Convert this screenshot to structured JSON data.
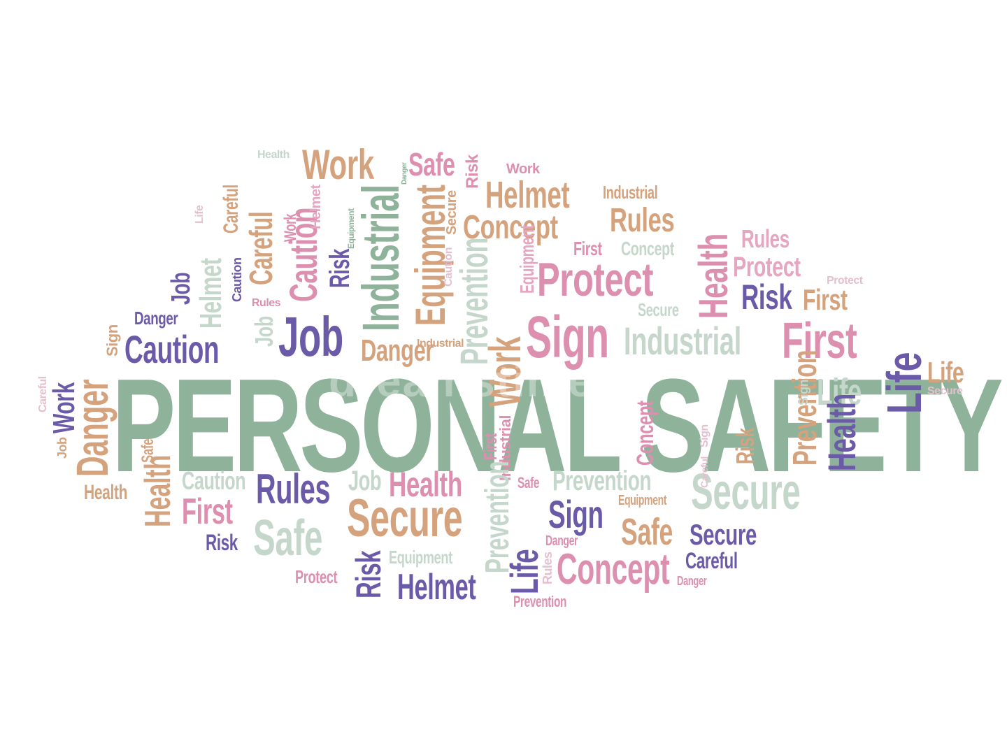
{
  "colors": {
    "green": "#8fb29b",
    "purple": "#6a5aa8",
    "tan": "#d4a27c",
    "pink": "#dd8fb0",
    "light": "#c5d7cb",
    "faint": "#e4c0cf"
  },
  "cloud": {
    "title": "PERSONAL SAFETY",
    "words": [
      "Health",
      "Work",
      "Safe",
      "Risk",
      "Work",
      "Helmet",
      "Industrial",
      "Rules",
      "Concept",
      "First",
      "Concept",
      "Rules",
      "Protect",
      "Protect",
      "Risk",
      "First",
      "Danger",
      "Caution",
      "Protect",
      "Job",
      "Danger",
      "Sign",
      "Secure",
      "Industrial",
      "First",
      "Life",
      "Life",
      "Secure",
      "Life",
      "Health",
      "Work",
      "Job",
      "Danger",
      "Safe",
      "Sign",
      "Health",
      "Caution",
      "Rules",
      "Job",
      "Health",
      "Safe",
      "Prevention",
      "Secure",
      "First",
      "Sign",
      "Secure",
      "Safe",
      "Equipment",
      "Sign",
      "Risk",
      "Danger",
      "Safe",
      "Secure",
      "Equipment",
      "Careful",
      "Risk",
      "Protect",
      "Life",
      "Helmet",
      "Concept",
      "Danger",
      "Prevention",
      "Health",
      "Careful",
      "Life",
      "Job",
      "Helmet",
      "Careful",
      "Caution",
      "Rules",
      "Job",
      "Caution",
      "Work",
      "Helmet",
      "Risk",
      "Equipment",
      "Industrial",
      "Danger",
      "Equipment",
      "Caution",
      "Secure",
      "Industrial",
      "Prevention",
      "Work",
      "Equipment",
      "Careful",
      "First",
      "Industrial",
      "Prevention",
      "Rules",
      "Concept",
      "Sign",
      "Risk",
      "Prevention",
      "Health",
      "Careful",
      "Sign"
    ]
  },
  "watermark": "dreamstime"
}
